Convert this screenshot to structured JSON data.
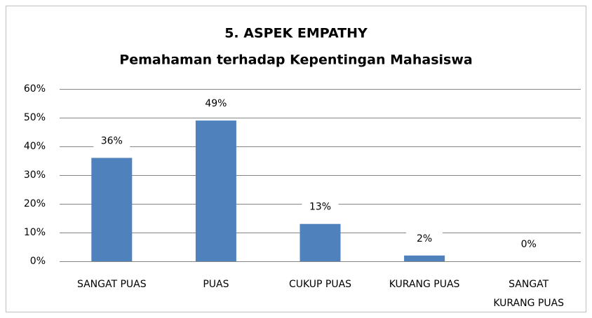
{
  "chart_data": {
    "type": "bar",
    "title": "5. ASPEK EMPATHY",
    "subtitle": "Pemahaman terhadap Kepentingan Mahasiswa",
    "categories": [
      "SANGAT PUAS",
      "PUAS",
      "CUKUP PUAS",
      "KURANG PUAS",
      "SANGAT KURANG PUAS"
    ],
    "values": [
      36,
      49,
      13,
      2,
      0
    ],
    "value_labels": [
      "36%",
      "49%",
      "13%",
      "2%",
      "0%"
    ],
    "color": "#4f81bd",
    "ylim": [
      0,
      60
    ],
    "yticks": [
      {
        "value": 0,
        "label": "0%"
      },
      {
        "value": 10,
        "label": "10%"
      },
      {
        "value": 20,
        "label": "20%"
      },
      {
        "value": 30,
        "label": "30%"
      },
      {
        "value": 40,
        "label": "40%"
      },
      {
        "value": 50,
        "label": "50%"
      },
      {
        "value": 60,
        "label": "60%"
      }
    ],
    "grid": true
  }
}
